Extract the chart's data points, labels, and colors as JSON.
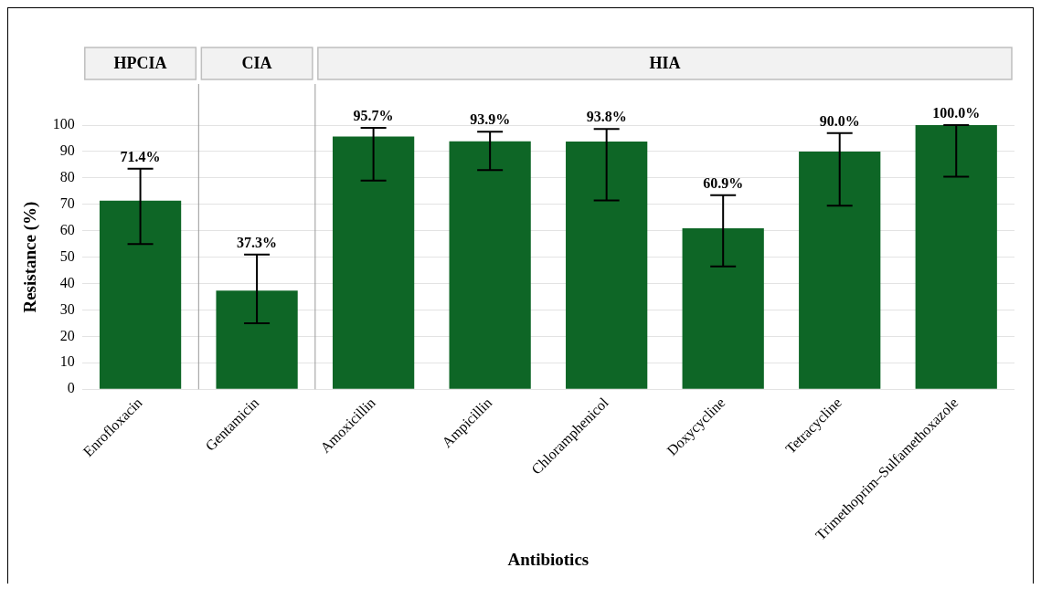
{
  "chart_data": {
    "type": "bar",
    "xlabel": "Antibiotics",
    "ylabel": "Resistance (%)",
    "categories": [
      "Enrofloxacin",
      "Gentamicin",
      "Amoxicillin",
      "Ampicillin",
      "Chloramphenicol",
      "Doxycycline",
      "Tetracycline",
      "Trimethoprim–Sulfamethoxazole"
    ],
    "values": [
      71.4,
      37.3,
      95.7,
      93.9,
      93.8,
      60.9,
      90.0,
      100.0
    ],
    "value_labels": [
      "71.4%",
      "37.3%",
      "95.7%",
      "93.9%",
      "93.8%",
      "60.9%",
      "90.0%",
      "100.0%"
    ],
    "errors": [
      [
        55,
        83.5
      ],
      [
        25,
        51
      ],
      [
        79,
        99
      ],
      [
        83,
        97.5
      ],
      [
        71.5,
        98.5
      ],
      [
        46.5,
        73.5
      ],
      [
        69.5,
        97
      ],
      [
        80.5,
        100
      ]
    ],
    "color": "#0e6626",
    "ylim": [
      0,
      100
    ],
    "yticks": [
      0,
      10,
      20,
      30,
      40,
      50,
      60,
      70,
      80,
      90,
      100
    ],
    "grid": "y",
    "annotations": [
      "HPCIA",
      "CIA",
      "HIA"
    ]
  }
}
